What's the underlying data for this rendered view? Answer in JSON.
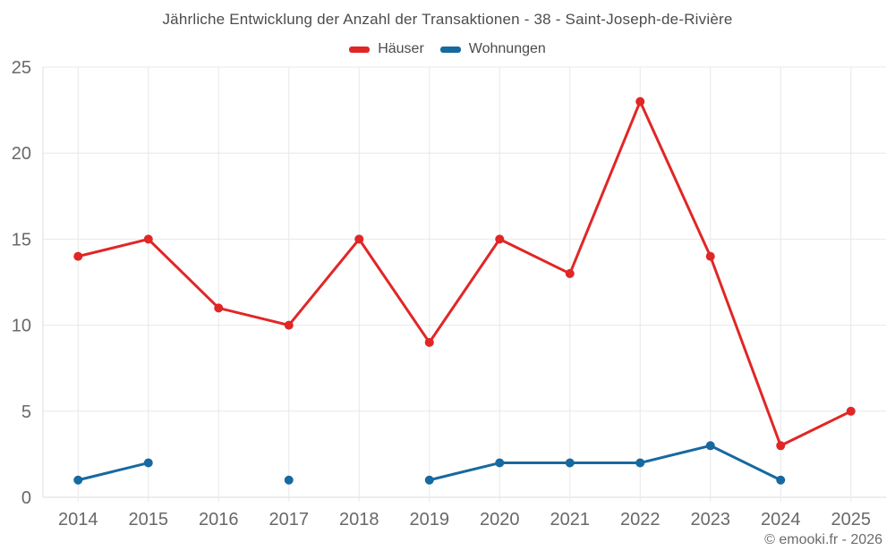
{
  "chart_data": {
    "type": "line",
    "title": "Jährliche Entwicklung der Anzahl der Transaktionen - 38 - Saint-Joseph-de-Rivière",
    "categories": [
      "2014",
      "2015",
      "2016",
      "2017",
      "2018",
      "2019",
      "2020",
      "2021",
      "2022",
      "2023",
      "2024",
      "2025"
    ],
    "series": [
      {
        "name": "Häuser",
        "color": "#e12626",
        "values": [
          14,
          15,
          11,
          10,
          15,
          9,
          15,
          13,
          23,
          14,
          3,
          5
        ]
      },
      {
        "name": "Wohnungen",
        "color": "#17699f",
        "values": [
          1,
          2,
          null,
          1,
          null,
          1,
          2,
          2,
          2,
          3,
          1,
          null
        ]
      }
    ],
    "xlabel": "",
    "ylabel": "",
    "ylim": [
      0,
      25
    ],
    "yticks": [
      0,
      5,
      10,
      15,
      20,
      25
    ],
    "grid": "on",
    "legend_position": "top",
    "grid_color": "#e8e8e8",
    "axis_border_color": "#dcdcdc",
    "tick_color": "#686868"
  },
  "footer": {
    "copyright": "© emooki.fr - 2026"
  }
}
